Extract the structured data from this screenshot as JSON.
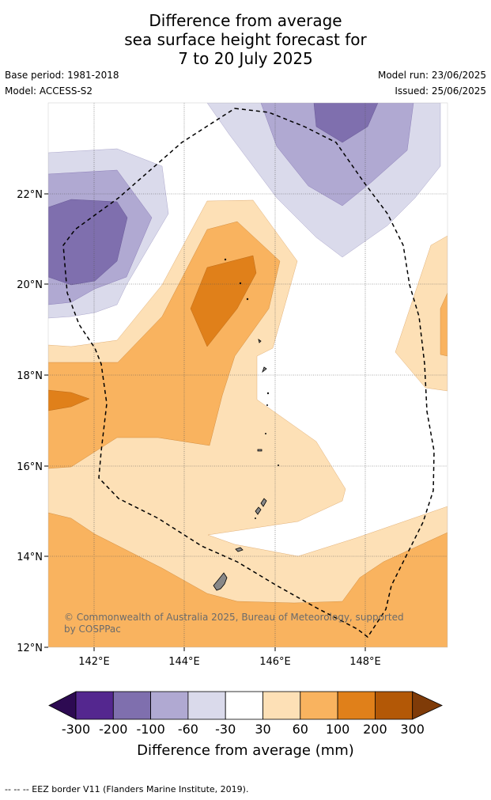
{
  "title": {
    "line1": "Difference from average",
    "line2": "sea surface height forecast for",
    "line3": "7 to 20 July 2025"
  },
  "meta": {
    "base_period": "Base period: 1981-2018",
    "model": "Model: ACCESS-S2",
    "model_run": "Model run: 23/06/2025",
    "issued": "Issued: 25/06/2025"
  },
  "map": {
    "lat_labels": [
      "22°N",
      "20°N",
      "18°N",
      "16°N",
      "14°N",
      "12°N"
    ],
    "lon_labels": [
      "142°E",
      "144°E",
      "146°E",
      "148°E"
    ],
    "copyright": "© Commonwealth of Australia 2025, Bureau of Meteorology, supported by COSPPac"
  },
  "colorbar": {
    "title": "Difference from average (mm)",
    "ticks": [
      "-300",
      "-200",
      "-100",
      "-60",
      "-30",
      "30",
      "60",
      "100",
      "200",
      "300"
    ],
    "colors": {
      "under": "#2d0a52",
      "c1": "#54278f",
      "c2": "#7f6fae",
      "c3": "#b0a9d2",
      "c4": "#dadaeb",
      "c5": "#ffffff",
      "c6": "#fde0b6",
      "c7": "#f9b35f",
      "c8": "#e0801a",
      "c9": "#b35806",
      "over": "#7f3b08"
    }
  },
  "footer": "--  --  -- EEZ border V11 (Flanders Marine Institute, 2019)."
}
